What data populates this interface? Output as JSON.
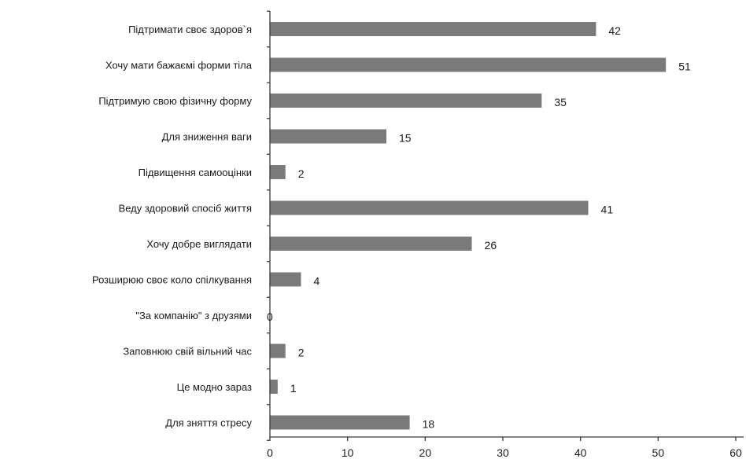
{
  "chart_data": {
    "type": "bar",
    "orientation": "horizontal",
    "categories": [
      "Підтримати своє здоров`я",
      "Хочу мати бажаємі форми тіла",
      "Підтримую свою фізичну форму",
      "Для зниження ваги",
      "Підвищення самооцінки",
      "Веду здоровий спосіб життя",
      "Хочу добре виглядати",
      "Розширюю своє коло спілкування",
      "\"За компанію\" з друзями",
      "Заповнюю свій вільний час",
      "Це модно зараз",
      "Для зняття стресу"
    ],
    "values": [
      42,
      51,
      35,
      15,
      2,
      41,
      26,
      4,
      0,
      2,
      1,
      18
    ],
    "x_ticks": [
      0,
      10,
      20,
      30,
      40,
      50,
      60
    ],
    "xlim": [
      0,
      60
    ],
    "bar_color": "#7a7a7a",
    "grid": false,
    "legend": "none"
  }
}
